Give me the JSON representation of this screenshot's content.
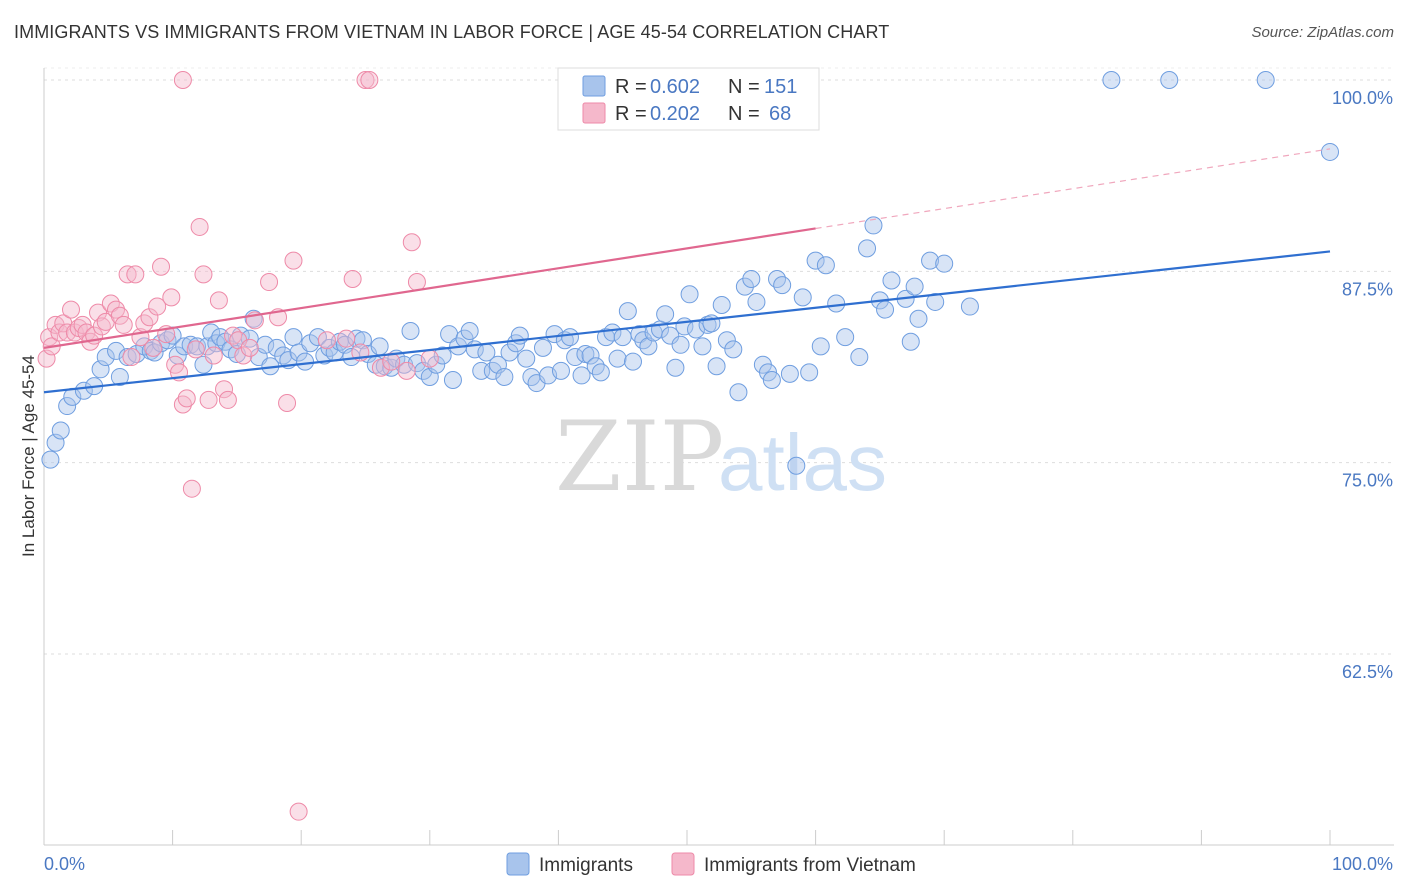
{
  "title": "IMMIGRANTS VS IMMIGRANTS FROM VIETNAM IN LABOR FORCE | AGE 45-54 CORRELATION CHART",
  "source": "Source: ZipAtlas.com",
  "watermark": {
    "zip": "ZIP",
    "atlas": "atlas"
  },
  "legend_box": {
    "rows": [
      {
        "r_label": "R = ",
        "r_value": "0.602",
        "n_label": "N = ",
        "n_value": "151",
        "color": "#a8c4ec"
      },
      {
        "r_label": "R = ",
        "r_value": "0.202",
        "n_label": "N = ",
        "n_value": "68",
        "color": "#f5b8cb"
      }
    ]
  },
  "bottom_legend": [
    "Immigrants",
    "Immigrants from Vietnam"
  ],
  "chart_data": {
    "type": "scatter",
    "xlabel": "",
    "ylabel": "In Labor Force | Age 45-54",
    "xlim": [
      0,
      100
    ],
    "ylim": [
      50,
      102
    ],
    "x_tick_labels": [
      "0.0%",
      "100.0%"
    ],
    "y_ticks": [
      62.5,
      75.0,
      87.5,
      100.0
    ],
    "y_tick_labels": [
      "62.5%",
      "75.0%",
      "87.5%",
      "100.0%"
    ],
    "grid": true,
    "legend_position": "top-center",
    "series": [
      {
        "name": "Immigrants",
        "color": "#6f9ee0",
        "trend": {
          "x0": 0,
          "y0": 79.6,
          "x1": 100,
          "y1": 88.8,
          "dashed_from": null
        },
        "points": [
          [
            0.5,
            75.2
          ],
          [
            0.9,
            76.3
          ],
          [
            1.3,
            77.1
          ],
          [
            1.8,
            78.7
          ],
          [
            2.2,
            79.3
          ],
          [
            3.1,
            79.7
          ],
          [
            3.9,
            80.0
          ],
          [
            4.4,
            81.1
          ],
          [
            4.8,
            81.9
          ],
          [
            5.6,
            82.3
          ],
          [
            5.9,
            80.6
          ],
          [
            6.5,
            81.9
          ],
          [
            7.2,
            82.1
          ],
          [
            7.8,
            82.6
          ],
          [
            8.3,
            82.3
          ],
          [
            8.6,
            82.2
          ],
          [
            9.1,
            82.8
          ],
          [
            9.6,
            83.0
          ],
          [
            10.0,
            83.3
          ],
          [
            10.4,
            82.0
          ],
          [
            10.9,
            82.6
          ],
          [
            11.4,
            82.7
          ],
          [
            11.9,
            82.6
          ],
          [
            12.4,
            81.4
          ],
          [
            12.7,
            82.6
          ],
          [
            13.0,
            83.5
          ],
          [
            13.4,
            82.8
          ],
          [
            13.7,
            83.2
          ],
          [
            14.1,
            82.9
          ],
          [
            14.5,
            82.4
          ],
          [
            15.0,
            82.1
          ],
          [
            15.3,
            83.3
          ],
          [
            16.0,
            83.1
          ],
          [
            16.3,
            84.4
          ],
          [
            16.7,
            81.9
          ],
          [
            17.2,
            82.7
          ],
          [
            17.6,
            81.3
          ],
          [
            18.1,
            82.5
          ],
          [
            18.6,
            82.0
          ],
          [
            19.0,
            81.7
          ],
          [
            19.4,
            83.2
          ],
          [
            19.8,
            82.2
          ],
          [
            20.3,
            81.6
          ],
          [
            20.7,
            82.8
          ],
          [
            21.3,
            83.2
          ],
          [
            21.8,
            82.0
          ],
          [
            22.2,
            82.5
          ],
          [
            22.6,
            82.2
          ],
          [
            23.0,
            82.9
          ],
          [
            23.4,
            82.7
          ],
          [
            23.9,
            81.9
          ],
          [
            24.3,
            83.1
          ],
          [
            24.8,
            83.0
          ],
          [
            25.2,
            82.1
          ],
          [
            25.8,
            81.4
          ],
          [
            26.1,
            82.6
          ],
          [
            26.5,
            81.3
          ],
          [
            27.0,
            81.2
          ],
          [
            27.4,
            81.8
          ],
          [
            28.0,
            81.4
          ],
          [
            28.5,
            83.6
          ],
          [
            29.0,
            81.5
          ],
          [
            29.5,
            81.0
          ],
          [
            30.0,
            80.6
          ],
          [
            30.5,
            81.4
          ],
          [
            31.0,
            82.0
          ],
          [
            31.5,
            83.4
          ],
          [
            31.8,
            80.4
          ],
          [
            32.2,
            82.6
          ],
          [
            32.7,
            83.1
          ],
          [
            33.1,
            83.6
          ],
          [
            33.5,
            82.4
          ],
          [
            34.0,
            81.0
          ],
          [
            34.4,
            82.2
          ],
          [
            34.9,
            81.0
          ],
          [
            35.3,
            81.4
          ],
          [
            35.8,
            80.6
          ],
          [
            36.2,
            82.2
          ],
          [
            36.7,
            82.8
          ],
          [
            37.0,
            83.3
          ],
          [
            37.5,
            81.8
          ],
          [
            37.9,
            80.6
          ],
          [
            38.3,
            80.2
          ],
          [
            38.8,
            82.5
          ],
          [
            39.2,
            80.7
          ],
          [
            39.7,
            83.4
          ],
          [
            40.2,
            81.0
          ],
          [
            40.5,
            83.0
          ],
          [
            40.9,
            83.2
          ],
          [
            41.3,
            81.9
          ],
          [
            41.8,
            80.7
          ],
          [
            42.1,
            82.1
          ],
          [
            42.5,
            82.0
          ],
          [
            42.9,
            81.3
          ],
          [
            43.3,
            80.9
          ],
          [
            43.7,
            83.2
          ],
          [
            44.2,
            83.5
          ],
          [
            44.6,
            81.8
          ],
          [
            45.0,
            83.2
          ],
          [
            45.4,
            84.9
          ],
          [
            45.8,
            81.6
          ],
          [
            46.3,
            83.4
          ],
          [
            46.6,
            83.0
          ],
          [
            47.0,
            82.6
          ],
          [
            47.4,
            83.5
          ],
          [
            47.9,
            83.7
          ],
          [
            48.3,
            84.7
          ],
          [
            48.7,
            83.3
          ],
          [
            49.1,
            81.2
          ],
          [
            49.5,
            82.7
          ],
          [
            49.8,
            83.9
          ],
          [
            50.2,
            86.0
          ],
          [
            50.7,
            83.7
          ],
          [
            51.2,
            82.6
          ],
          [
            51.6,
            84.0
          ],
          [
            51.9,
            84.1
          ],
          [
            52.3,
            81.3
          ],
          [
            52.7,
            85.3
          ],
          [
            53.1,
            83.0
          ],
          [
            53.6,
            82.4
          ],
          [
            54.0,
            79.6
          ],
          [
            54.5,
            86.5
          ],
          [
            55.0,
            87.0
          ],
          [
            55.4,
            85.5
          ],
          [
            55.9,
            81.4
          ],
          [
            56.3,
            80.9
          ],
          [
            56.6,
            80.4
          ],
          [
            57.0,
            87.0
          ],
          [
            57.4,
            86.6
          ],
          [
            58.0,
            80.8
          ],
          [
            58.5,
            74.8
          ],
          [
            59.0,
            85.8
          ],
          [
            59.5,
            80.9
          ],
          [
            60.0,
            88.2
          ],
          [
            60.4,
            82.6
          ],
          [
            60.8,
            87.9
          ],
          [
            61.6,
            85.4
          ],
          [
            62.3,
            83.2
          ],
          [
            63.4,
            81.9
          ],
          [
            64.0,
            89.0
          ],
          [
            64.5,
            90.5
          ],
          [
            65.0,
            85.6
          ],
          [
            65.4,
            85.0
          ],
          [
            65.9,
            86.9
          ],
          [
            67.0,
            85.7
          ],
          [
            67.4,
            82.9
          ],
          [
            67.7,
            86.5
          ],
          [
            68.0,
            84.4
          ],
          [
            68.9,
            88.2
          ],
          [
            69.3,
            85.5
          ],
          [
            70.0,
            88.0
          ],
          [
            72.0,
            85.2
          ],
          [
            83.0,
            100.0
          ],
          [
            87.5,
            100.0
          ],
          [
            95.0,
            100.0
          ],
          [
            100.0,
            95.3
          ]
        ]
      },
      {
        "name": "Immigrants from Vietnam",
        "color": "#ee8aa8",
        "trend": {
          "x0": 0,
          "y0": 82.5,
          "x1": 100,
          "y1": 95.5,
          "dashed_from": 60
        },
        "points": [
          [
            0.2,
            81.8
          ],
          [
            0.4,
            83.2
          ],
          [
            0.6,
            82.6
          ],
          [
            0.9,
            84.0
          ],
          [
            1.2,
            83.5
          ],
          [
            1.5,
            84.1
          ],
          [
            1.8,
            83.5
          ],
          [
            2.1,
            85.0
          ],
          [
            2.4,
            83.5
          ],
          [
            2.7,
            83.8
          ],
          [
            3.0,
            84.0
          ],
          [
            3.3,
            83.5
          ],
          [
            3.6,
            82.9
          ],
          [
            3.9,
            83.3
          ],
          [
            4.2,
            84.8
          ],
          [
            4.5,
            83.9
          ],
          [
            4.8,
            84.2
          ],
          [
            5.2,
            85.4
          ],
          [
            5.6,
            85.0
          ],
          [
            5.9,
            84.6
          ],
          [
            6.2,
            84.0
          ],
          [
            6.5,
            87.3
          ],
          [
            6.8,
            81.9
          ],
          [
            7.1,
            87.3
          ],
          [
            7.5,
            83.2
          ],
          [
            7.8,
            84.1
          ],
          [
            8.2,
            84.5
          ],
          [
            8.5,
            82.5
          ],
          [
            8.8,
            85.2
          ],
          [
            9.1,
            87.8
          ],
          [
            9.5,
            83.4
          ],
          [
            9.9,
            85.8
          ],
          [
            10.2,
            81.4
          ],
          [
            10.5,
            80.9
          ],
          [
            10.8,
            78.8
          ],
          [
            11.1,
            79.2
          ],
          [
            11.5,
            73.3
          ],
          [
            11.8,
            82.4
          ],
          [
            12.1,
            90.4
          ],
          [
            12.4,
            87.3
          ],
          [
            12.8,
            79.1
          ],
          [
            13.2,
            82.0
          ],
          [
            13.6,
            85.6
          ],
          [
            14.0,
            79.8
          ],
          [
            14.3,
            79.1
          ],
          [
            14.7,
            83.3
          ],
          [
            15.1,
            83.0
          ],
          [
            15.5,
            82.0
          ],
          [
            16.0,
            82.5
          ],
          [
            16.4,
            84.3
          ],
          [
            17.5,
            86.8
          ],
          [
            18.2,
            84.5
          ],
          [
            18.9,
            78.9
          ],
          [
            19.4,
            88.2
          ],
          [
            19.8,
            52.2
          ],
          [
            22.0,
            83.0
          ],
          [
            23.5,
            83.1
          ],
          [
            24.0,
            87.0
          ],
          [
            24.6,
            82.2
          ],
          [
            25.0,
            100.0
          ],
          [
            25.3,
            100.0
          ],
          [
            26.2,
            81.2
          ],
          [
            27.0,
            81.6
          ],
          [
            28.2,
            81.0
          ],
          [
            28.6,
            89.4
          ],
          [
            29.0,
            86.8
          ],
          [
            30.0,
            81.8
          ],
          [
            10.8,
            100.0
          ]
        ]
      }
    ]
  }
}
